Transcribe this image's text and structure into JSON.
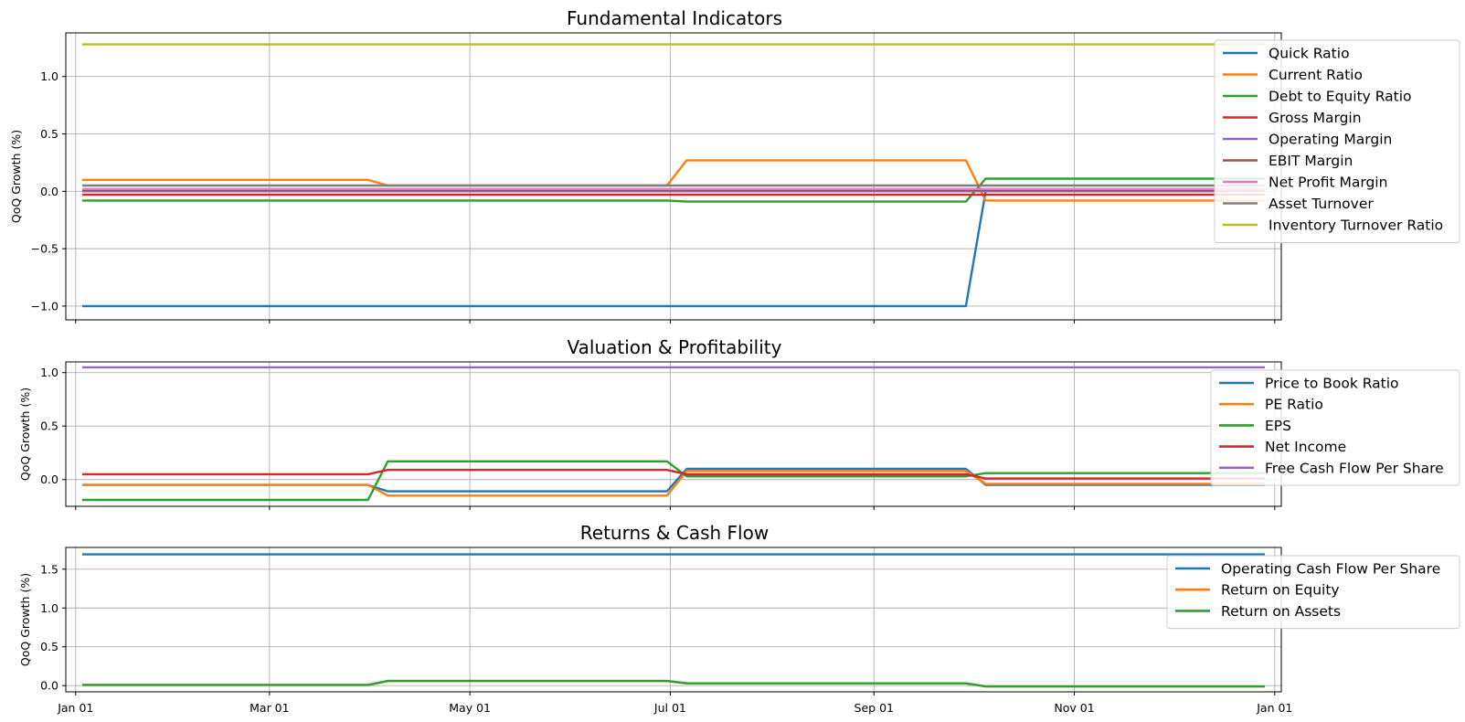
{
  "x_ticks": [
    "Jan 01",
    "Mar 01",
    "May 01",
    "Jul 01",
    "Sep 01",
    "Nov 01",
    "Jan 01"
  ],
  "chart_data": [
    {
      "type": "line",
      "title": "Fundamental Indicators",
      "ylabel": "QoQ Growth (%)",
      "x": [
        "2023-01-03",
        "2023-03-31",
        "2023-04-06",
        "2023-06-30",
        "2023-07-06",
        "2023-09-29",
        "2023-10-05",
        "2023-12-29"
      ],
      "ylim": [
        -1.12,
        1.38
      ],
      "yticks": [
        -1.0,
        -0.5,
        0.0,
        0.5,
        1.0
      ],
      "ytick_labels": [
        "−1.0",
        "−0.5",
        "0.0",
        "0.5",
        "1.0"
      ],
      "grid": true,
      "legend_position": "top-right",
      "series": [
        {
          "name": "Quick Ratio",
          "color": "#1f77b4",
          "values": [
            -1.0,
            -1.0,
            -1.0,
            -1.0,
            -1.0,
            -1.0,
            0.0,
            0.0
          ]
        },
        {
          "name": "Current Ratio",
          "color": "#ff7f0e",
          "values": [
            0.1,
            0.1,
            0.05,
            0.05,
            0.27,
            0.27,
            -0.08,
            -0.08
          ]
        },
        {
          "name": "Debt to Equity Ratio",
          "color": "#2ca02c",
          "values": [
            -0.08,
            -0.08,
            -0.08,
            -0.08,
            -0.09,
            -0.09,
            0.11,
            0.11
          ]
        },
        {
          "name": "Gross Margin",
          "color": "#d62728",
          "values": [
            -0.03,
            -0.03,
            -0.03,
            -0.03,
            -0.03,
            -0.03,
            -0.03,
            -0.03
          ]
        },
        {
          "name": "Operating Margin",
          "color": "#9467bd",
          "values": [
            0.0,
            0.0,
            0.0,
            0.0,
            0.0,
            0.0,
            0.0,
            0.0
          ]
        },
        {
          "name": "EBIT Margin",
          "color": "#8c564b",
          "values": [
            0.01,
            0.01,
            0.01,
            0.01,
            0.01,
            0.01,
            0.01,
            0.01
          ]
        },
        {
          "name": "Net Profit Margin",
          "color": "#e377c2",
          "values": [
            0.02,
            0.02,
            0.02,
            0.02,
            0.02,
            0.02,
            0.02,
            0.02
          ]
        },
        {
          "name": "Asset Turnover",
          "color": "#7f7f7f",
          "values": [
            0.05,
            0.05,
            0.05,
            0.05,
            0.05,
            0.05,
            0.05,
            0.05
          ]
        },
        {
          "name": "Inventory Turnover Ratio",
          "color": "#bcbd22",
          "values": [
            1.28,
            1.28,
            1.28,
            1.28,
            1.28,
            1.28,
            1.28,
            1.28
          ]
        }
      ]
    },
    {
      "type": "line",
      "title": "Valuation & Profitability",
      "ylabel": "QoQ Growth (%)",
      "x": [
        "2023-01-03",
        "2023-03-31",
        "2023-04-06",
        "2023-06-30",
        "2023-07-06",
        "2023-09-29",
        "2023-10-05",
        "2023-12-29"
      ],
      "ylim": [
        -0.25,
        1.1
      ],
      "yticks": [
        0.0,
        0.5,
        1.0
      ],
      "ytick_labels": [
        "0.0",
        "0.5",
        "1.0"
      ],
      "grid": true,
      "legend_position": "right",
      "series": [
        {
          "name": "Price to Book Ratio",
          "color": "#1f77b4",
          "values": [
            -0.05,
            -0.05,
            -0.11,
            -0.11,
            0.1,
            0.1,
            -0.05,
            -0.05
          ]
        },
        {
          "name": "PE Ratio",
          "color": "#ff7f0e",
          "values": [
            -0.05,
            -0.05,
            -0.15,
            -0.15,
            0.08,
            0.08,
            -0.04,
            -0.04
          ]
        },
        {
          "name": "EPS",
          "color": "#2ca02c",
          "values": [
            -0.19,
            -0.19,
            0.17,
            0.17,
            0.03,
            0.03,
            0.06,
            0.06
          ]
        },
        {
          "name": "Net Income",
          "color": "#d62728",
          "values": [
            0.05,
            0.05,
            0.09,
            0.09,
            0.05,
            0.05,
            0.01,
            0.01
          ]
        },
        {
          "name": "Free Cash Flow Per Share",
          "color": "#9467bd",
          "values": [
            1.05,
            1.05,
            1.05,
            1.05,
            1.05,
            1.05,
            1.05,
            1.05
          ]
        }
      ]
    },
    {
      "type": "line",
      "title": "Returns & Cash Flow",
      "ylabel": "QoQ Growth (%)",
      "x": [
        "2023-01-03",
        "2023-03-31",
        "2023-04-06",
        "2023-06-30",
        "2023-07-06",
        "2023-09-29",
        "2023-10-05",
        "2023-12-29"
      ],
      "ylim": [
        -0.08,
        1.78
      ],
      "yticks": [
        0.0,
        0.5,
        1.0,
        1.5
      ],
      "ytick_labels": [
        "0.0",
        "0.5",
        "1.0",
        "1.5"
      ],
      "grid": true,
      "legend_position": "right",
      "series": [
        {
          "name": "Operating Cash Flow Per Share",
          "color": "#1f77b4",
          "values": [
            1.69,
            1.69,
            1.69,
            1.69,
            1.69,
            1.69,
            1.69,
            1.69
          ]
        },
        {
          "name": "Return on Equity",
          "color": "#ff7f0e",
          "values": [
            0.01,
            0.01,
            0.06,
            0.06,
            0.03,
            0.03,
            -0.01,
            -0.01
          ]
        },
        {
          "name": "Return on Assets",
          "color": "#2ca02c",
          "values": [
            0.01,
            0.01,
            0.06,
            0.06,
            0.03,
            0.03,
            -0.01,
            -0.01
          ]
        }
      ]
    }
  ]
}
